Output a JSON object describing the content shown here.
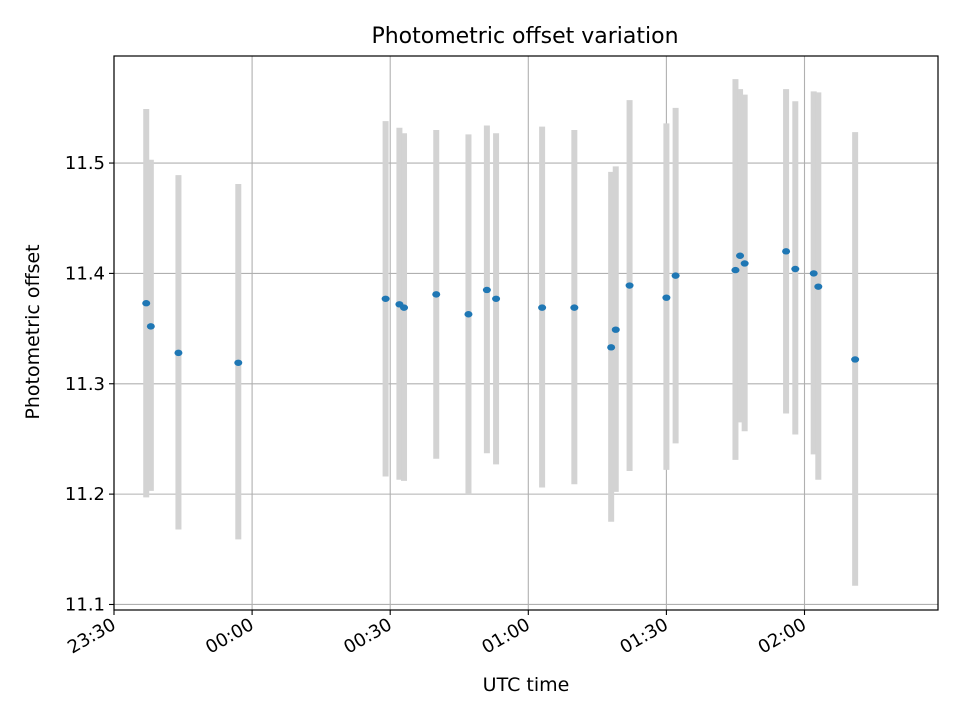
{
  "chart_data": {
    "type": "scatter",
    "title": "Photometric offset variation",
    "xlabel": "UTC time",
    "ylabel": "Photometric offset",
    "x_ticks": [
      "23:30",
      "00:00",
      "00:30",
      "01:00",
      "01:30",
      "02:00"
    ],
    "y_ticks": [
      "11.1",
      "11.2",
      "11.3",
      "11.4",
      "11.5"
    ],
    "xlim": [
      "23:30",
      "02:29"
    ],
    "ylim": [
      11.095,
      11.597
    ],
    "grid": true,
    "marker_color": "#1f77b4",
    "errorbar_color": "#d3d3d3",
    "points": [
      {
        "t": "23:37",
        "y": 11.373,
        "err_low": 11.197,
        "err_high": 11.549
      },
      {
        "t": "23:38",
        "y": 11.352,
        "err_low": 11.203,
        "err_high": 11.503
      },
      {
        "t": "23:44",
        "y": 11.328,
        "err_low": 11.168,
        "err_high": 11.489
      },
      {
        "t": "23:57",
        "y": 11.319,
        "err_low": 11.159,
        "err_high": 11.481
      },
      {
        "t": "00:29",
        "y": 11.377,
        "err_low": 11.216,
        "err_high": 11.538
      },
      {
        "t": "00:32",
        "y": 11.372,
        "err_low": 11.213,
        "err_high": 11.532
      },
      {
        "t": "00:33",
        "y": 11.369,
        "err_low": 11.212,
        "err_high": 11.527
      },
      {
        "t": "00:40",
        "y": 11.381,
        "err_low": 11.232,
        "err_high": 11.53
      },
      {
        "t": "00:47",
        "y": 11.363,
        "err_low": 11.2,
        "err_high": 11.526
      },
      {
        "t": "00:51",
        "y": 11.385,
        "err_low": 11.237,
        "err_high": 11.534
      },
      {
        "t": "00:53",
        "y": 11.377,
        "err_low": 11.227,
        "err_high": 11.527
      },
      {
        "t": "01:03",
        "y": 11.369,
        "err_low": 11.206,
        "err_high": 11.533
      },
      {
        "t": "01:10",
        "y": 11.369,
        "err_low": 11.209,
        "err_high": 11.53
      },
      {
        "t": "01:18",
        "y": 11.333,
        "err_low": 11.175,
        "err_high": 11.492
      },
      {
        "t": "01:19",
        "y": 11.349,
        "err_low": 11.202,
        "err_high": 11.497
      },
      {
        "t": "01:22",
        "y": 11.389,
        "err_low": 11.221,
        "err_high": 11.557
      },
      {
        "t": "01:30",
        "y": 11.378,
        "err_low": 11.222,
        "err_high": 11.536
      },
      {
        "t": "01:32",
        "y": 11.398,
        "err_low": 11.246,
        "err_high": 11.55
      },
      {
        "t": "01:45",
        "y": 11.403,
        "err_low": 11.231,
        "err_high": 11.576
      },
      {
        "t": "01:46",
        "y": 11.416,
        "err_low": 11.265,
        "err_high": 11.567
      },
      {
        "t": "01:47",
        "y": 11.409,
        "err_low": 11.257,
        "err_high": 11.562
      },
      {
        "t": "01:56",
        "y": 11.42,
        "err_low": 11.273,
        "err_high": 11.567
      },
      {
        "t": "01:58",
        "y": 11.404,
        "err_low": 11.254,
        "err_high": 11.556
      },
      {
        "t": "02:02",
        "y": 11.4,
        "err_low": 11.236,
        "err_high": 11.565
      },
      {
        "t": "02:03",
        "y": 11.388,
        "err_low": 11.213,
        "err_high": 11.564
      },
      {
        "t": "02:11",
        "y": 11.322,
        "err_low": 11.117,
        "err_high": 11.528
      }
    ]
  }
}
